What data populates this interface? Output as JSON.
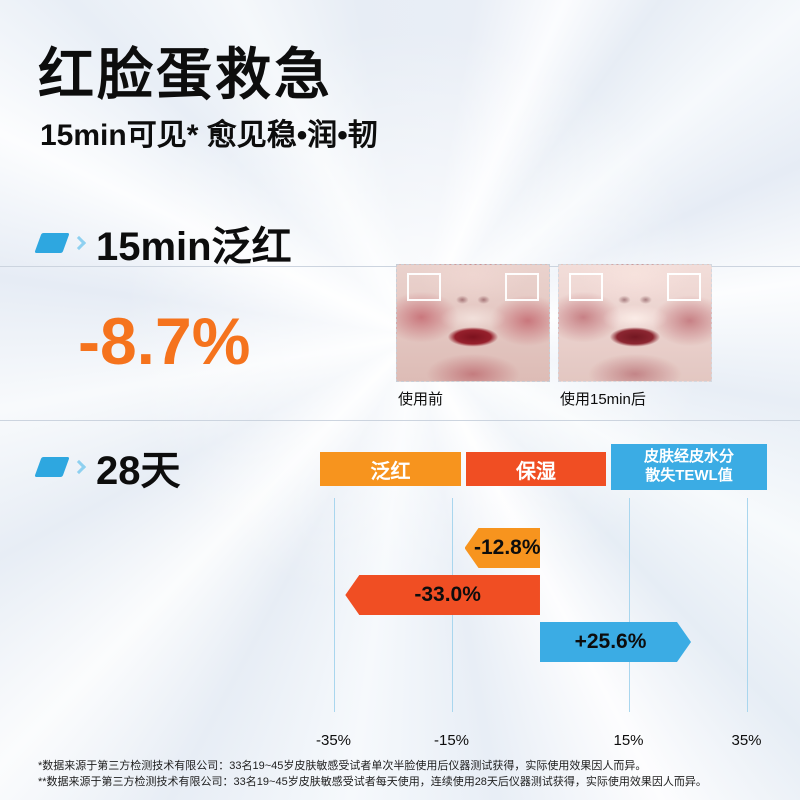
{
  "header": {
    "title": "红脸蛋救急",
    "subtitle": "15min可见* 愈见稳•润•韧"
  },
  "sections": {
    "min15": {
      "title": "15min泛红",
      "stat": "-8.7%",
      "photo_before_label": "使用前",
      "photo_after_label": "使用15min后"
    },
    "day28": {
      "title": "28天"
    }
  },
  "chart_data": {
    "type": "bar",
    "orientation": "horizontal",
    "categories": [
      "泛红",
      "保湿",
      "皮肤经皮水分散失TEWL值"
    ],
    "category_display": [
      "泛红",
      "保湿",
      "皮肤经皮水分\n散失TEWL值"
    ],
    "values": [
      -12.8,
      -33.0,
      25.6
    ],
    "value_labels": [
      "-12.8%",
      "-33.0%",
      "+25.6%"
    ],
    "bar_colors": [
      "#F7941E",
      "#F04E23",
      "#3BACE4"
    ],
    "x_ticks": [
      -35,
      -15,
      15,
      35
    ],
    "x_tick_labels": [
      "-35%",
      "-15%",
      "15%",
      "35%"
    ],
    "xlim": [
      -40,
      40
    ],
    "grid": true,
    "legend_position": "top"
  },
  "colors": {
    "accent_blue": "#2EA7E0",
    "accent_orange": "#F5731D",
    "gridline_blue": "#A9D6EE"
  },
  "footnotes": [
    "*数据来源于第三方检测技术有限公司：33名19~45岁皮肤敏感受试者单次半脸使用后仪器测试获得，实际使用效果因人而异。",
    "**数据来源于第三方检测技术有限公司：33名19~45岁皮肤敏感受试者每天使用，连续使用28天后仪器测试获得，实际使用效果因人而异。"
  ]
}
